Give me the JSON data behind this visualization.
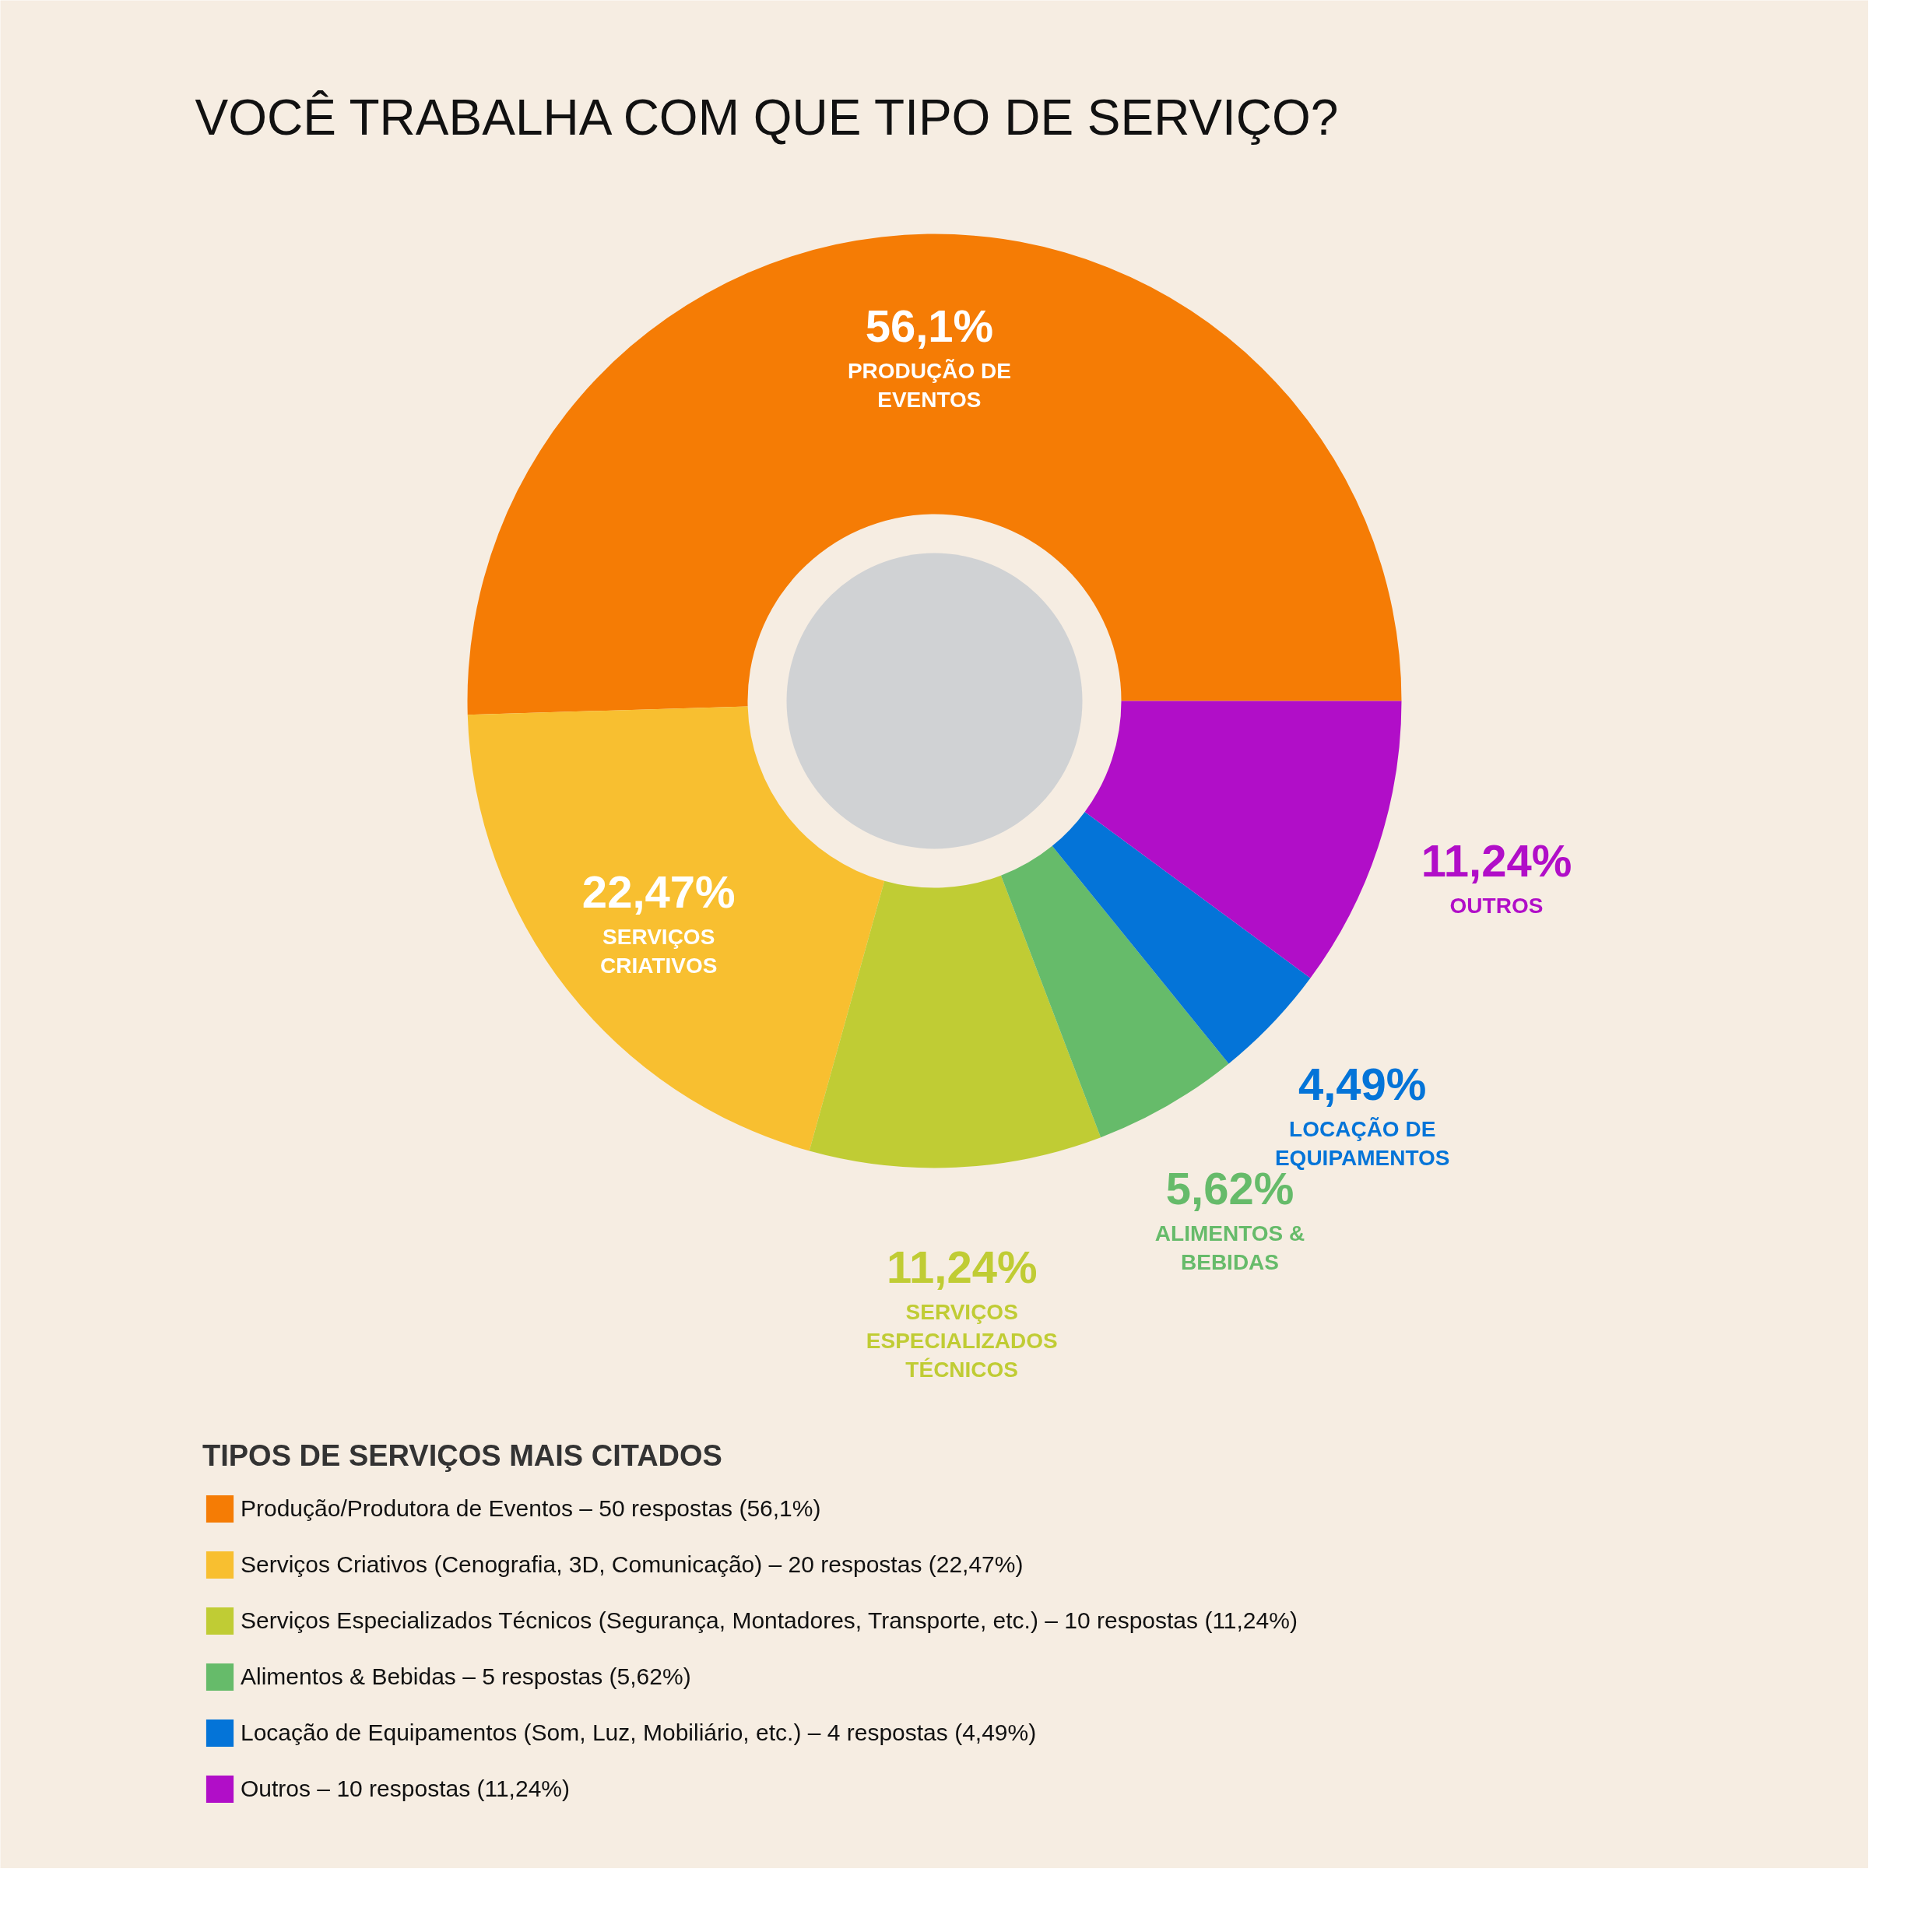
{
  "chart_data": {
    "type": "donut",
    "title": "VOCÊ TRABALHA COM QUE TIPO DE SERVIÇO?",
    "categories": [
      "Produção/Produtora de Eventos – 50 respostas (56,1%)",
      "Serviços Criativos (Cenografia, 3D, Comunicação) – 20 respostas (22,47%)",
      "Serviços Especializados Técnicos (Segurança, Montadores, Transporte, etc.) – 10 respostas (11,24%)",
      "Alimentos & Bebidas – 5 respostas (5,62%)",
      "Locação de Equipamentos (Som, Luz, Mobiliário, etc.) – 4 respostas (4,49%)",
      "Outros – 10 respostas (11,24%)"
    ],
    "values": [
      56.1,
      22.47,
      11.24,
      5.62,
      4.49,
      11.24
    ],
    "value_labels": [
      "56,1%",
      "22,47%",
      "11,24%",
      "5,62%",
      "4,49%",
      "11,24%"
    ],
    "colors": [
      "#f57c05",
      "#f8bf30",
      "#c0cc34",
      "#66bb6a",
      "#0474d8",
      "#b10ec8"
    ],
    "legend_title": "TIPOS DE SERVIÇOS MAIS CITADOS",
    "legend": "bottom left",
    "annotations": [
      "PRODUÇÃO DE EVENTOS",
      "SERVIÇOS CRIATIVOS",
      "SERVIÇOS ESPECIALIZADOS TÉCNICOS",
      "ALIMENTOS & BEBIDAS",
      "LOCAÇÃO DE EQUIPAMENTOS",
      "OUTROS"
    ]
  }
}
